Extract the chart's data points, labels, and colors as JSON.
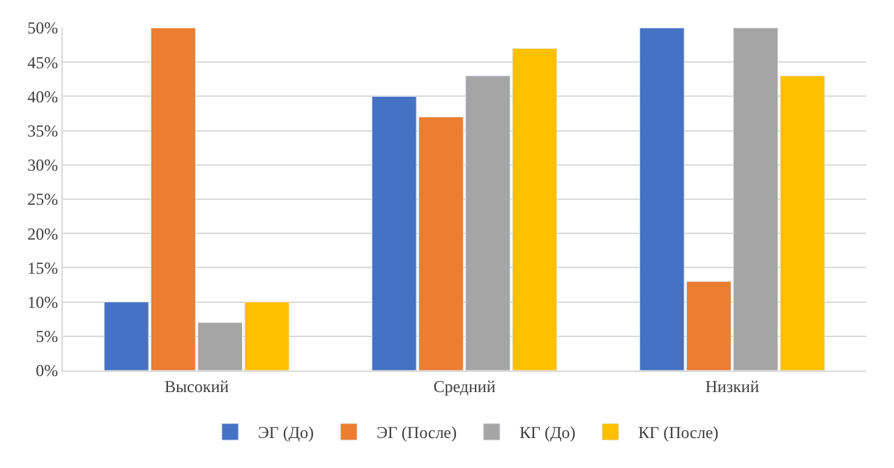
{
  "chart_data": {
    "type": "bar",
    "categories": [
      "Высокий",
      "Средний",
      "Низкий"
    ],
    "series": [
      {
        "name": "ЭГ (До)",
        "color": "#4472c4",
        "values": [
          10,
          40,
          50
        ]
      },
      {
        "name": "ЭГ (После)",
        "color": "#ed7d31",
        "values": [
          50,
          37,
          13
        ]
      },
      {
        "name": "КГ (До)",
        "color": "#a5a5a5",
        "values": [
          7,
          43,
          50
        ]
      },
      {
        "name": "КГ (После)",
        "color": "#ffc000",
        "values": [
          10,
          47,
          43
        ]
      }
    ],
    "ylim": [
      0,
      50
    ],
    "yticks": [
      {
        "value": 0,
        "label": "0%"
      },
      {
        "value": 5,
        "label": "5%"
      },
      {
        "value": 10,
        "label": "10%"
      },
      {
        "value": 15,
        "label": "15%"
      },
      {
        "value": 20,
        "label": "20%"
      },
      {
        "value": 25,
        "label": "25%"
      },
      {
        "value": 30,
        "label": "30%"
      },
      {
        "value": 35,
        "label": "35%"
      },
      {
        "value": 40,
        "label": "40%"
      },
      {
        "value": 45,
        "label": "45%"
      },
      {
        "value": 50,
        "label": "50%"
      }
    ],
    "grid": "y",
    "legend": "bottom"
  }
}
